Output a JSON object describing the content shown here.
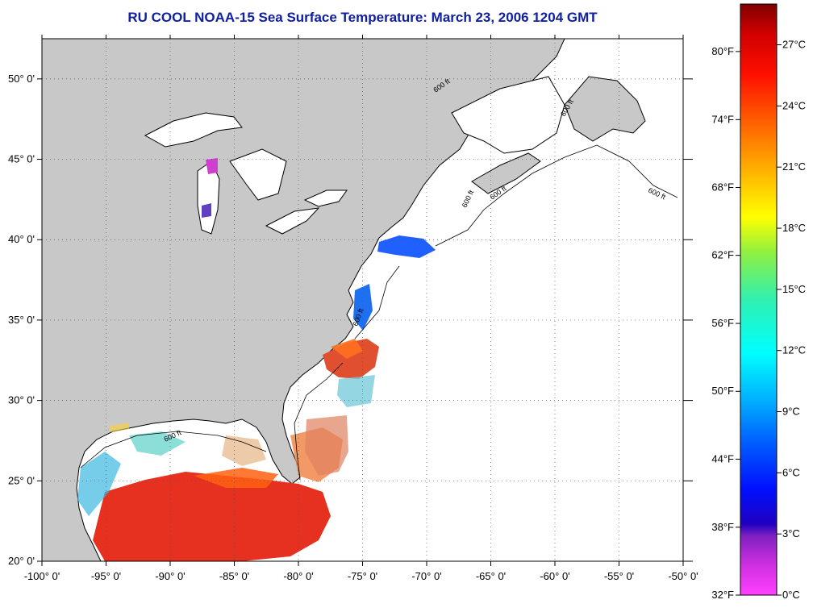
{
  "title": "RU COOL  NOAA-15  Sea Surface Temperature:  March 23, 2006 1204 GMT",
  "map": {
    "lon_range": [
      -100,
      -50
    ],
    "lat_range": [
      20,
      52.5
    ],
    "grid": true,
    "contour_label": "600 ft",
    "lon_ticks": [
      {
        "value": -100,
        "label": "-100° 0'"
      },
      {
        "value": -95,
        "label": "-95° 0'"
      },
      {
        "value": -90,
        "label": "-90° 0'"
      },
      {
        "value": -85,
        "label": "-85° 0'"
      },
      {
        "value": -80,
        "label": "-80° 0'"
      },
      {
        "value": -75,
        "label": "-75° 0'"
      },
      {
        "value": -70,
        "label": "-70° 0'"
      },
      {
        "value": -65,
        "label": "-65° 0'"
      },
      {
        "value": -60,
        "label": "-60° 0'"
      },
      {
        "value": -55,
        "label": "-55° 0'"
      },
      {
        "value": -50,
        "label": "-50° 0'"
      }
    ],
    "lat_ticks": [
      {
        "value": 20,
        "label": "20° 0'"
      },
      {
        "value": 25,
        "label": "25° 0'"
      },
      {
        "value": 30,
        "label": "30° 0'"
      },
      {
        "value": 35,
        "label": "35° 0'"
      },
      {
        "value": 40,
        "label": "40° 0'"
      },
      {
        "value": 45,
        "label": "45° 0'"
      },
      {
        "value": 50,
        "label": "50° 0'"
      }
    ]
  },
  "colorbar": {
    "range_c": [
      0,
      29
    ],
    "fahrenheit_labels": [
      {
        "value_c": 0,
        "label": "32°F"
      },
      {
        "value_c": 3.33,
        "label": "38°F"
      },
      {
        "value_c": 6.67,
        "label": "44°F"
      },
      {
        "value_c": 10,
        "label": "50°F"
      },
      {
        "value_c": 13.33,
        "label": "56°F"
      },
      {
        "value_c": 16.67,
        "label": "62°F"
      },
      {
        "value_c": 20,
        "label": "68°F"
      },
      {
        "value_c": 23.33,
        "label": "74°F"
      },
      {
        "value_c": 26.67,
        "label": "80°F"
      }
    ],
    "celsius_labels": [
      {
        "value_c": 0,
        "label": "0°C"
      },
      {
        "value_c": 3,
        "label": "3°C"
      },
      {
        "value_c": 6,
        "label": "6°C"
      },
      {
        "value_c": 9,
        "label": "9°C"
      },
      {
        "value_c": 12,
        "label": "12°C"
      },
      {
        "value_c": 15,
        "label": "15°C"
      },
      {
        "value_c": 18,
        "label": "18°C"
      },
      {
        "value_c": 21,
        "label": "21°C"
      },
      {
        "value_c": 24,
        "label": "24°C"
      },
      {
        "value_c": 27,
        "label": "27°C"
      }
    ]
  },
  "colors": {
    "land": "#c8c8c8",
    "ocean": "#ffffff",
    "title": "#1020a0"
  }
}
